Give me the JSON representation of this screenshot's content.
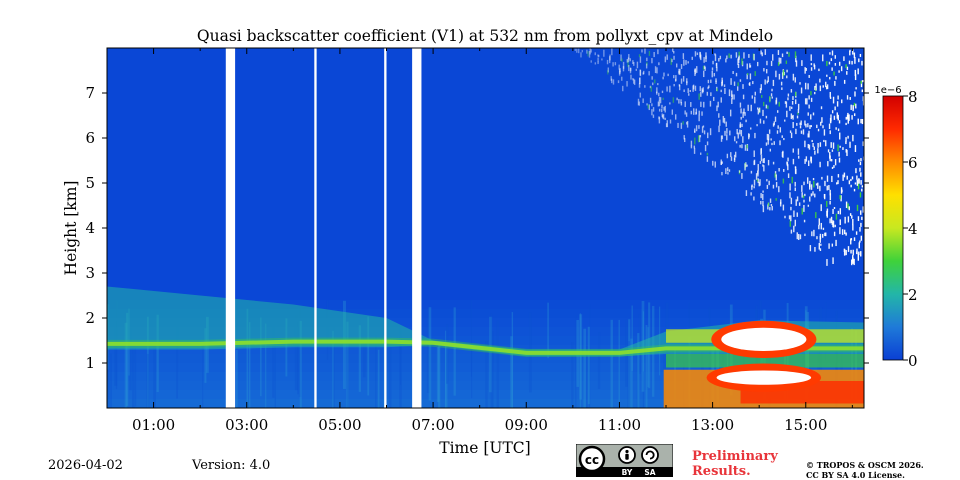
{
  "chart_data": {
    "type": "heatmap",
    "title": "Quasi backscatter coefficient (V1) at 532 nm from pollyxt_cpv at Mindelo",
    "xlabel": "Time [UTC]",
    "ylabel": "Height [km]",
    "x_range_hours": [
      0.0,
      16.25
    ],
    "y_range_km": [
      0.0,
      8.0
    ],
    "x_ticks": [
      1,
      3,
      5,
      7,
      9,
      11,
      13,
      15
    ],
    "x_tick_labels": [
      "01:00",
      "03:00",
      "05:00",
      "07:00",
      "09:00",
      "11:00",
      "13:00",
      "15:00"
    ],
    "y_ticks": [
      1,
      2,
      3,
      4,
      5,
      6,
      7
    ],
    "y_tick_labels": [
      "1",
      "2",
      "3",
      "4",
      "5",
      "6",
      "7"
    ],
    "colorbar": {
      "min": 0,
      "max": 8,
      "exponent_label": "1e−6",
      "ticks": [
        0,
        2,
        4,
        6,
        8
      ],
      "tick_labels": [
        "0",
        "2",
        "4",
        "6",
        "8"
      ],
      "colormap": [
        "#0a3fd4",
        "#1f7ad8",
        "#23b6a8",
        "#3fd23a",
        "#c8e820",
        "#ffe000",
        "#ff8a00",
        "#ff2a00",
        "#d20000"
      ]
    },
    "data_gaps_hours": [
      [
        2.55,
        2.75
      ],
      [
        4.45,
        4.5
      ],
      [
        5.95,
        6.0
      ],
      [
        6.55,
        6.75
      ]
    ],
    "aerosol_layer": [
      {
        "t": 0.0,
        "base": 1.3,
        "top": 2.7
      },
      {
        "t": 2.0,
        "base": 1.3,
        "top": 2.5
      },
      {
        "t": 4.0,
        "base": 1.35,
        "top": 2.3
      },
      {
        "t": 6.0,
        "base": 1.35,
        "top": 2.0
      },
      {
        "t": 7.0,
        "base": 1.4,
        "top": 1.5
      },
      {
        "t": 9.0,
        "base": 1.15,
        "top": 1.3
      },
      {
        "t": 11.0,
        "base": 1.15,
        "top": 1.3
      },
      {
        "t": 12.0,
        "base": 1.2,
        "top": 1.7
      },
      {
        "t": 14.0,
        "base": 1.2,
        "top": 1.95
      },
      {
        "t": 16.25,
        "base": 1.2,
        "top": 1.9
      }
    ],
    "cloud_regions": [
      {
        "t_start": 13.1,
        "t_end": 15.1,
        "base": 1.2,
        "top": 1.85
      },
      {
        "t_start": 13.0,
        "t_end": 15.2,
        "base": 0.45,
        "top": 0.9
      }
    ],
    "noise_region": {
      "t_start": 10.0,
      "t_end": 16.25,
      "base": 3.3,
      "top": 8.0
    }
  },
  "footer": {
    "date": "2026-04-02",
    "version": "Version: 4.0",
    "preliminary_line1": "Preliminary",
    "preliminary_line2": "Results.",
    "copyright_line1": "© TROPOS & OSCM 2026.",
    "copyright_line2": "CC BY SA 4.0 License.",
    "license_badge": {
      "by": "BY",
      "sa": "SA"
    }
  }
}
